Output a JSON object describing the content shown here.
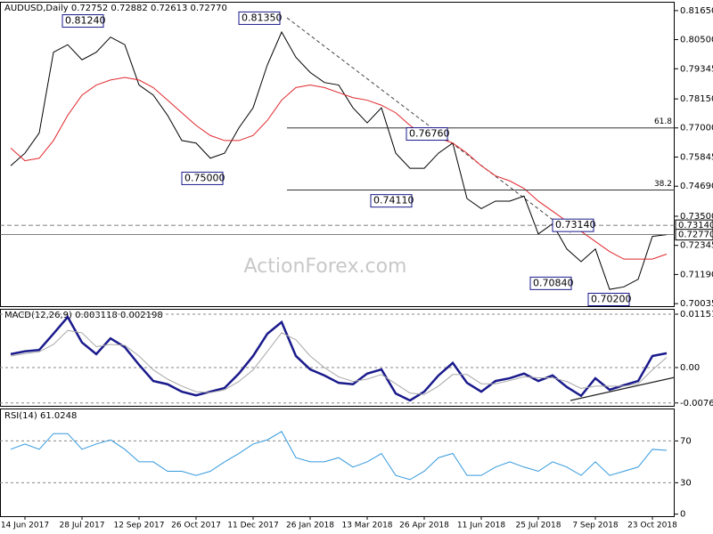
{
  "chart_data": {
    "type": "line",
    "header": "AUDUSD,Daily  0.72752 0.72882 0.72613 0.72770",
    "watermark": "ActionForex.com",
    "categories": [
      null,
      "14 Jun 2017",
      null,
      null,
      null,
      "28 Jul 2017",
      null,
      null,
      null,
      "12 Sep 2017",
      null,
      null,
      null,
      "26 Oct 2017",
      null,
      null,
      null,
      "11 Dec 2017",
      null,
      null,
      null,
      "26 Jan 2018",
      null,
      null,
      null,
      "13 Mar 2018",
      null,
      null,
      null,
      "26 Apr 2018",
      null,
      null,
      null,
      "11 Jun 2018",
      null,
      null,
      null,
      "25 Jul 2018",
      null,
      null,
      null,
      "7 Sep 2018",
      null,
      null,
      null,
      "23 Oct 2018",
      null
    ],
    "ylim": [
      0.699,
      0.82
    ],
    "yticks": [
      {
        "value": 0.8165,
        "label": "0.81650"
      },
      {
        "value": 0.805,
        "label": "0.80500"
      },
      {
        "value": 0.79345,
        "label": "0.79345"
      },
      {
        "value": 0.7815,
        "label": "0.78150"
      },
      {
        "value": 0.77,
        "label": "0.77000"
      },
      {
        "value": 0.75845,
        "label": "0.75845"
      },
      {
        "value": 0.7469,
        "label": "0.74690"
      },
      {
        "value": 0.735,
        "label": "0.73500"
      },
      {
        "value": 0.72345,
        "label": "0.72345"
      },
      {
        "value": 0.7119,
        "label": "0.71190"
      },
      {
        "value": 0.70035,
        "label": "0.70035"
      }
    ],
    "series": [
      {
        "color": "#000000",
        "values": [
          0.755,
          0.76,
          0.768,
          0.8,
          0.803,
          0.797,
          0.8,
          0.806,
          0.803,
          0.787,
          0.783,
          0.775,
          0.765,
          0.764,
          0.758,
          0.76,
          0.77,
          0.778,
          0.795,
          0.808,
          0.798,
          0.792,
          0.788,
          0.787,
          0.778,
          0.772,
          0.778,
          0.76,
          0.754,
          0.754,
          0.76,
          0.764,
          0.742,
          0.738,
          0.741,
          0.741,
          0.743,
          0.728,
          0.732,
          0.722,
          0.717,
          0.722,
          0.706,
          0.707,
          0.71,
          0.727,
          0.7277
        ]
      },
      {
        "color": "#e0262b",
        "values": [
          0.762,
          0.757,
          0.758,
          0.765,
          0.775,
          0.783,
          0.787,
          0.789,
          0.79,
          0.789,
          0.786,
          0.781,
          0.776,
          0.771,
          0.767,
          0.765,
          0.765,
          0.767,
          0.773,
          0.781,
          0.786,
          0.787,
          0.786,
          0.784,
          0.782,
          0.781,
          0.779,
          0.776,
          0.771,
          0.767,
          0.766,
          0.764,
          0.76,
          0.755,
          0.751,
          0.749,
          0.746,
          0.741,
          0.737,
          0.733,
          0.729,
          0.725,
          0.721,
          0.718,
          0.718,
          0.718,
          0.72
        ]
      }
    ],
    "annotations": [
      {
        "value": 0.8124,
        "label": "0.81240"
      },
      {
        "value": 0.8135,
        "label": "0.81350"
      },
      {
        "value": 0.75,
        "label": "0.75000"
      },
      {
        "value": 0.7676,
        "label": "0.76760"
      },
      {
        "value": 0.7411,
        "label": "0.74110"
      },
      {
        "value": 0.7314,
        "label": "0.73140"
      },
      {
        "value": 0.7084,
        "label": "0.70840"
      },
      {
        "value": 0.702,
        "label": "0.70200"
      }
    ],
    "fib_levels": [
      {
        "value": 0.77,
        "label": "61.8"
      },
      {
        "value": 0.7454,
        "label": "38.2"
      }
    ],
    "price_markers": [
      {
        "value": 0.7314,
        "label": "0.73140"
      },
      {
        "value": 0.7277,
        "label": "0.72770"
      }
    ],
    "macd": {
      "label": "MACD(12,26,9) 0.003118 0.002198",
      "ylim": [
        -0.00845,
        0.01267
      ],
      "yticks": [
        0.011517,
        {
          "value": 0,
          "label": "0.00"
        },
        -0.007634
      ],
      "series": [
        {
          "color": "#1a1a8c",
          "values": [
            0.0029,
            0.0035,
            0.0038,
            0.0073,
            0.0109,
            0.0054,
            0.0029,
            0.0063,
            0.0044,
            0.0006,
            -0.0029,
            -0.0036,
            -0.0052,
            -0.006,
            -0.0052,
            -0.0044,
            -0.0013,
            0.0025,
            0.0073,
            0.0098,
            0.0025,
            -0.0004,
            -0.0017,
            -0.0033,
            -0.0036,
            -0.0013,
            -0.0004,
            -0.0056,
            -0.0071,
            -0.0052,
            -0.0017,
            0.001,
            -0.0033,
            -0.0052,
            -0.0029,
            -0.0023,
            -0.0013,
            -0.0029,
            -0.0017,
            -0.0042,
            -0.0061,
            -0.0023,
            -0.0048,
            -0.0038,
            -0.0029,
            0.0025,
            0.0031
          ]
        },
        {
          "color": "#a8a8a8",
          "values": [
            0.0025,
            0.003,
            0.0034,
            0.005,
            0.008,
            0.0075,
            0.0045,
            0.005,
            0.0048,
            0.0025,
            -0.0005,
            -0.0025,
            -0.004,
            -0.0052,
            -0.0054,
            -0.0048,
            -0.003,
            -0.0005,
            0.0035,
            0.0075,
            0.006,
            0.0025,
            0,
            -0.002,
            -0.003,
            -0.0025,
            -0.0015,
            -0.0035,
            -0.0055,
            -0.0058,
            -0.004,
            -0.0015,
            -0.0015,
            -0.0035,
            -0.0035,
            -0.0028,
            -0.002,
            -0.0022,
            -0.0022,
            -0.003,
            -0.0045,
            -0.004,
            -0.004,
            -0.004,
            -0.0035,
            -0.0005,
            0.0022
          ]
        }
      ]
    },
    "rsi": {
      "label": "RSI(14) 61.0248",
      "ylim": [
        -2,
        101
      ],
      "yticks": [
        70,
        30,
        0
      ],
      "series": [
        {
          "color": "#3399dd",
          "values": [
            62,
            67,
            62,
            77,
            77,
            62,
            67,
            71,
            62,
            50,
            50,
            41,
            41,
            37,
            41,
            50,
            58,
            67,
            71,
            79,
            54,
            50,
            50,
            54,
            45,
            50,
            58,
            37,
            33,
            41,
            54,
            58,
            37,
            37,
            45,
            50,
            45,
            41,
            50,
            45,
            37,
            50,
            37,
            41,
            45,
            62,
            61
          ]
        }
      ]
    }
  }
}
